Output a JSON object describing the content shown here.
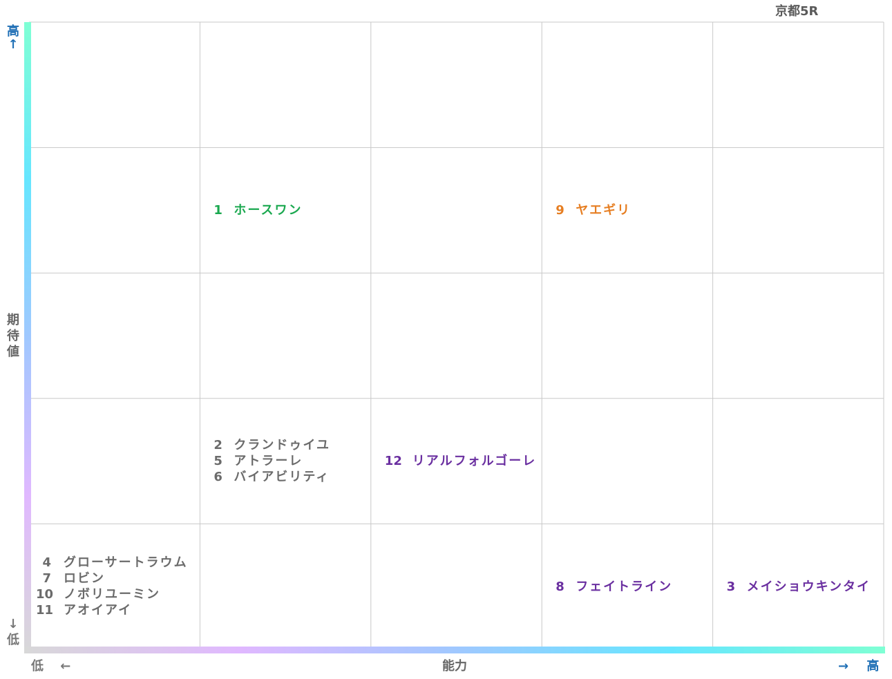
{
  "title": "京都5R",
  "colors": {
    "grid": "#c8c8c8",
    "axis_y_gradient": [
      "#7fffd4",
      "#66e6ff",
      "#a0c8ff",
      "#e0b8ff",
      "#d8d8d8"
    ],
    "axis_x_gradient": [
      "#d8d8d8",
      "#e0b8ff",
      "#a0c8ff",
      "#66e6ff",
      "#7fffd4"
    ],
    "high_label": "#1f6fb5",
    "low_label": "#777777",
    "tier_green": "#1aa84f",
    "tier_orange": "#e67e22",
    "tier_purple": "#6a2fa0",
    "tier_gray": "#6b6b6b"
  },
  "axes": {
    "y_title": "期待値",
    "y_high": "高",
    "y_high_arrow": "↑",
    "y_low": "低",
    "y_low_arrow": "↓",
    "x_title": "能力",
    "x_low": "低",
    "x_low_arrow": "←",
    "x_high": "高",
    "x_high_arrow": "→"
  },
  "chart_data": {
    "type": "table",
    "columns": 5,
    "rows": 5,
    "x_axis": "能力",
    "y_axis": "期待値",
    "horses": [
      {
        "num": "1",
        "name": "ホースワン",
        "col": 2,
        "row": 4,
        "tier": "tier_green"
      },
      {
        "num": "9",
        "name": "ヤエギリ",
        "col": 4,
        "row": 4,
        "tier": "tier_orange"
      },
      {
        "num": "2",
        "name": "クランドゥイユ",
        "col": 2,
        "row": 2,
        "tier": "tier_gray"
      },
      {
        "num": "5",
        "name": "アトラーレ",
        "col": 2,
        "row": 2,
        "tier": "tier_gray"
      },
      {
        "num": "6",
        "name": "バイアビリティ",
        "col": 2,
        "row": 2,
        "tier": "tier_gray"
      },
      {
        "num": "12",
        "name": "リアルフォルゴーレ",
        "col": 3,
        "row": 2,
        "tier": "tier_purple"
      },
      {
        "num": "4",
        "name": "グローサートラウム",
        "col": 1,
        "row": 1,
        "tier": "tier_gray"
      },
      {
        "num": "7",
        "name": "ロビン",
        "col": 1,
        "row": 1,
        "tier": "tier_gray"
      },
      {
        "num": "10",
        "name": "ノボリユーミン",
        "col": 1,
        "row": 1,
        "tier": "tier_gray"
      },
      {
        "num": "11",
        "name": "アオイアイ",
        "col": 1,
        "row": 1,
        "tier": "tier_gray"
      },
      {
        "num": "8",
        "name": "フェイトライン",
        "col": 4,
        "row": 1,
        "tier": "tier_purple"
      },
      {
        "num": "3",
        "name": "メイショウキンタイ",
        "col": 5,
        "row": 1,
        "tier": "tier_purple"
      }
    ]
  }
}
